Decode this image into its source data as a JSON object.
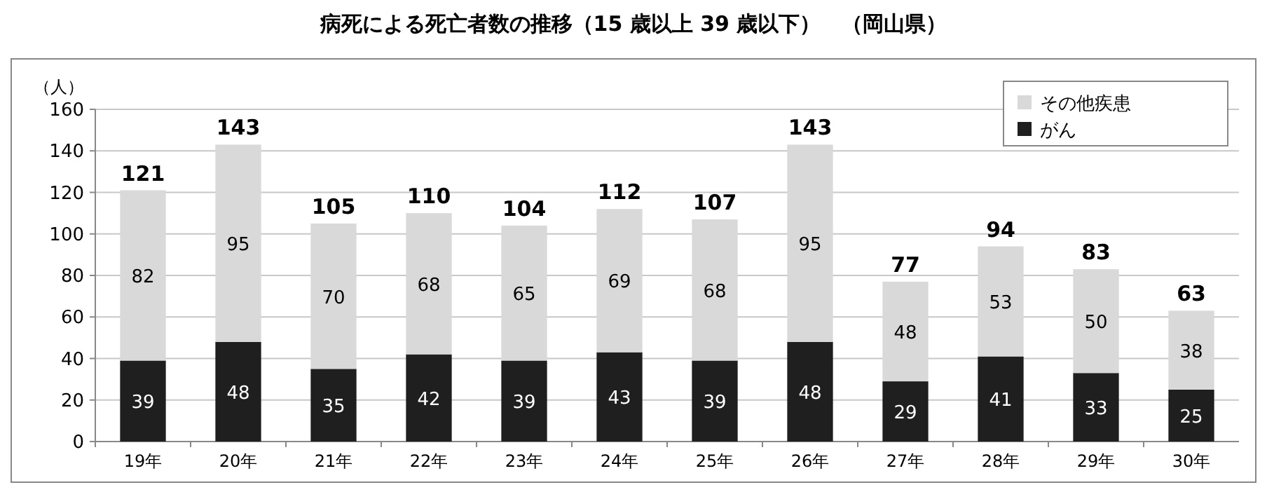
{
  "chart_data": {
    "type": "bar",
    "title": "病死による死亡者数の推移（15 歳以上 39 歳以下）　（岡山県）",
    "ylabel": "（人）",
    "categories": [
      "19年",
      "20年",
      "21年",
      "22年",
      "23年",
      "24年",
      "25年",
      "26年",
      "27年",
      "28年",
      "29年",
      "30年"
    ],
    "series": [
      {
        "name": "がん",
        "color": "#1f1f1f",
        "values": [
          39,
          48,
          35,
          42,
          39,
          43,
          39,
          48,
          29,
          41,
          33,
          25
        ]
      },
      {
        "name": "その他疾患",
        "color": "#d9d9d9",
        "values": [
          82,
          95,
          70,
          68,
          65,
          69,
          68,
          95,
          48,
          53,
          50,
          38
        ]
      }
    ],
    "stacked": true,
    "ylim": [
      0,
      160
    ],
    "yticks": [
      0,
      20,
      40,
      60,
      80,
      100,
      120,
      140,
      160
    ],
    "grid": "y",
    "legend": "top right",
    "data_labels": true,
    "totals": [
      "121",
      "143",
      "105",
      "110",
      "104",
      "112",
      "107",
      "143",
      "77",
      "94",
      "83",
      "63"
    ]
  }
}
